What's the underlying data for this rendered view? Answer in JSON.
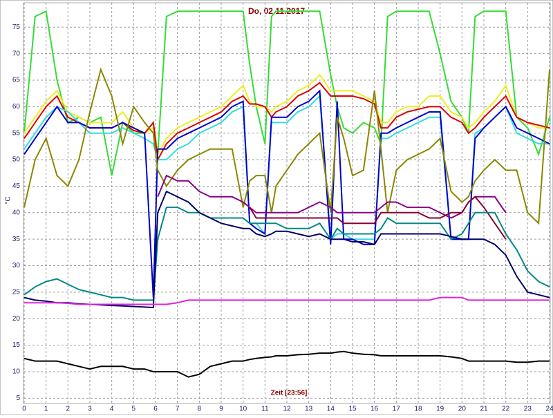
{
  "chart_data": {
    "type": "line",
    "title": "Do, 02.11.2017",
    "x_label": "Zeit [23:56]",
    "y_label": "°C",
    "xlim": [
      0,
      24
    ],
    "ylim": [
      4,
      79.6
    ],
    "xticks": [
      0,
      1,
      2,
      3,
      4,
      5,
      6,
      7,
      8,
      9,
      10,
      11,
      12,
      13,
      14,
      15,
      16,
      17,
      18,
      19,
      20,
      21,
      22,
      23,
      24
    ],
    "yticks": [
      5,
      10,
      15,
      20,
      25,
      30,
      35,
      40,
      45,
      50,
      55,
      60,
      65,
      70,
      75
    ],
    "grid": true,
    "x": [
      0,
      0.5,
      1,
      1.5,
      2,
      2.5,
      3,
      3.5,
      4,
      4.5,
      5,
      5.5,
      5.9,
      6.1,
      6.5,
      7,
      7.5,
      8,
      8.5,
      9,
      9.5,
      10,
      10.3,
      10.6,
      11,
      11.3,
      11.5,
      12,
      12.5,
      13,
      13.5,
      14,
      14.3,
      14.6,
      15,
      15.5,
      16,
      16.3,
      16.6,
      17,
      17.5,
      18,
      18.5,
      19,
      19.5,
      20,
      20.3,
      20.6,
      21,
      21.5,
      22,
      22.5,
      23,
      23.5,
      24
    ],
    "series": [
      {
        "color": "#33dd33",
        "values": [
          55,
          77,
          78,
          65,
          57,
          58,
          57,
          58,
          47,
          57,
          55,
          55,
          57,
          51,
          77,
          78,
          78,
          78,
          78,
          78,
          78,
          78,
          68,
          60,
          53,
          77,
          78,
          78,
          78,
          78,
          78,
          66,
          60,
          56,
          55,
          57,
          56,
          53,
          77,
          78,
          78,
          78,
          78,
          70,
          61,
          58,
          55,
          77,
          78,
          78,
          78,
          58,
          56,
          51,
          58
        ]
      },
      {
        "color": "#eeee22",
        "values": [
          55,
          58,
          61,
          63,
          59,
          58,
          57,
          57,
          57,
          59,
          56,
          55,
          56,
          51,
          54,
          56,
          57,
          58,
          59,
          60,
          62,
          64,
          61,
          60,
          60,
          59,
          60,
          61,
          63,
          64,
          66,
          63,
          63,
          63,
          63,
          62,
          61,
          57,
          57,
          59,
          60,
          60,
          62,
          62,
          59,
          58,
          56,
          57,
          59,
          61,
          64,
          58,
          57,
          56,
          56
        ]
      },
      {
        "color": "#dd0000",
        "values": [
          54,
          57,
          60,
          62,
          58,
          57,
          56,
          56,
          56,
          57,
          55.5,
          55,
          57,
          50,
          53,
          55,
          56,
          57,
          58,
          59,
          61,
          62,
          60.5,
          60.5,
          60,
          58,
          59,
          60,
          62,
          63,
          64.5,
          62,
          62,
          62,
          62,
          61.5,
          60.5,
          56,
          56,
          58,
          59,
          59.5,
          60,
          60,
          58,
          57,
          55,
          56,
          58,
          60,
          62,
          58,
          57,
          56.5,
          56
        ]
      },
      {
        "color": "#33dddd",
        "values": [
          52,
          55,
          58,
          60,
          59,
          57,
          55,
          55,
          55,
          56,
          55,
          54,
          53,
          50,
          50,
          52,
          53,
          55,
          56,
          57,
          59,
          60,
          38,
          38,
          36,
          57,
          57,
          57,
          59,
          60,
          62,
          35,
          36,
          36,
          35,
          35,
          35,
          54,
          54,
          55,
          56,
          57,
          58,
          58,
          35,
          35,
          35,
          55,
          56,
          58,
          60,
          55,
          54,
          53,
          53
        ]
      },
      {
        "color": "#0000cc",
        "values": [
          51,
          54,
          57,
          60,
          57,
          57,
          56,
          56,
          56,
          57,
          56,
          55,
          24,
          52,
          52,
          54,
          55,
          56,
          57,
          58,
          60,
          61,
          38,
          37,
          36,
          58,
          58,
          58,
          60,
          61,
          63,
          34,
          61,
          35,
          35,
          34,
          34,
          55,
          55,
          56,
          57,
          58,
          59,
          59,
          35,
          35,
          35,
          54,
          56,
          58,
          60,
          56,
          55,
          54,
          53
        ]
      },
      {
        "color": "#888800",
        "values": [
          41,
          50,
          54,
          47,
          45,
          50,
          59,
          67,
          62,
          53,
          60,
          57,
          55,
          48,
          45,
          48,
          50,
          51,
          52,
          52,
          52,
          41,
          46,
          47,
          47,
          40,
          45,
          48,
          51,
          53,
          55,
          40,
          58,
          54,
          47,
          48,
          63,
          52,
          40,
          48,
          50,
          51,
          52,
          54,
          44,
          42,
          43,
          46,
          48,
          50,
          48,
          48,
          40,
          38,
          67
        ]
      },
      {
        "color": "#880088",
        "values": [
          null,
          null,
          null,
          null,
          null,
          null,
          null,
          null,
          null,
          null,
          null,
          null,
          null,
          43,
          47,
          46,
          46,
          44,
          43,
          43,
          43,
          42,
          41,
          40,
          40,
          40,
          40,
          40,
          40,
          41,
          42,
          41,
          40,
          40,
          40,
          40,
          40,
          41,
          42,
          42,
          41,
          41,
          41,
          40,
          39,
          40,
          42,
          43,
          43,
          43,
          40,
          null,
          null,
          null,
          null
        ]
      },
      {
        "color": "#880033",
        "values": [
          null,
          null,
          null,
          null,
          null,
          null,
          null,
          null,
          null,
          null,
          null,
          null,
          null,
          null,
          null,
          null,
          null,
          null,
          null,
          null,
          null,
          null,
          41,
          39,
          39,
          39,
          39,
          39,
          39,
          39,
          39,
          39,
          39,
          38,
          38,
          38,
          38,
          40,
          40,
          40,
          40,
          40,
          39,
          39,
          40,
          40,
          42,
          43,
          41,
          38,
          35,
          null,
          null,
          null,
          null
        ]
      },
      {
        "color": "#008888",
        "values": [
          24.5,
          26,
          27,
          27.5,
          26.5,
          25.5,
          25,
          24.5,
          24,
          24,
          23.5,
          23.5,
          23.5,
          35,
          41,
          41,
          40,
          40,
          39,
          39,
          39,
          39,
          38,
          38,
          38,
          38,
          38,
          37,
          37,
          37,
          38,
          35,
          37,
          36,
          36,
          36,
          36,
          37,
          39,
          38,
          38,
          38,
          38,
          38,
          35,
          36,
          38,
          40,
          40,
          40,
          36,
          33,
          29,
          27,
          26
        ]
      },
      {
        "color": "#000066",
        "values": [
          24,
          23.5,
          23.3,
          23,
          23,
          22.8,
          22.7,
          22.6,
          22.5,
          22.4,
          22.3,
          22.2,
          22.1,
          40,
          44,
          43,
          42,
          40,
          39,
          38,
          37.5,
          37,
          37,
          36,
          35.5,
          36,
          36.5,
          36.5,
          36,
          35.5,
          36,
          35,
          35,
          35,
          34.5,
          34.5,
          34,
          36,
          36,
          36,
          36,
          36,
          36,
          36,
          35.5,
          35,
          35,
          35,
          35,
          34,
          32,
          28,
          25,
          24.5,
          24
        ]
      },
      {
        "color": "#dd22dd",
        "values": [
          23,
          23,
          23,
          23,
          22.9,
          22.7,
          22.7,
          22.7,
          22.7,
          22.7,
          22.7,
          22.7,
          22.7,
          22.7,
          22.7,
          23,
          23.5,
          23.5,
          23.5,
          23.5,
          23.5,
          23.5,
          23.5,
          23.5,
          23.5,
          23.5,
          23.5,
          23.5,
          23.5,
          23.5,
          23.5,
          23.5,
          23.5,
          23.5,
          23.5,
          23.5,
          23.5,
          23.5,
          23.5,
          23.5,
          23.5,
          23.5,
          23.5,
          24,
          24,
          24,
          23.5,
          23.5,
          23.5,
          23.5,
          23.5,
          23.5,
          23.5,
          23.5,
          23.5
        ]
      },
      {
        "color": "#000000",
        "values": [
          12.5,
          12,
          12,
          12,
          11.5,
          11,
          10.5,
          11,
          11,
          11,
          10.5,
          10.5,
          10,
          10,
          10,
          10,
          9,
          9.5,
          11,
          11.5,
          12,
          12,
          12.3,
          12.5,
          12.7,
          12.8,
          13,
          13,
          13.2,
          13.3,
          13.5,
          13.5,
          13.7,
          13.8,
          13.5,
          13.3,
          13.2,
          13,
          13,
          13,
          13,
          13,
          13,
          13,
          12.8,
          12.5,
          12,
          12,
          12,
          12,
          12,
          11.8,
          11.8,
          12,
          12
        ]
      }
    ]
  }
}
